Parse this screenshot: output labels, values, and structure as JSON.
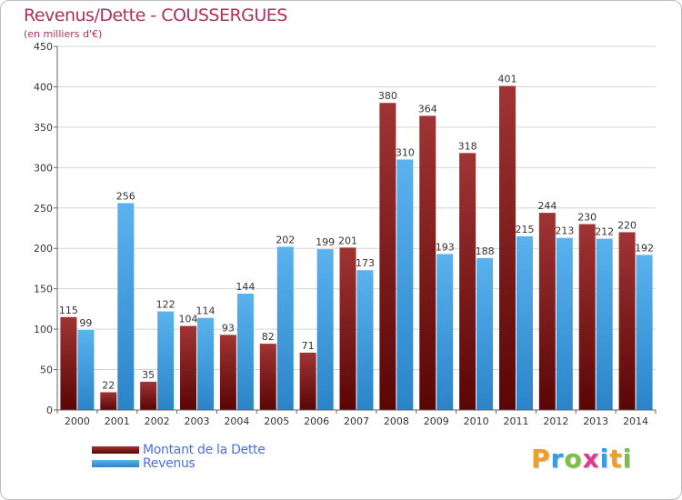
{
  "chart_data": {
    "type": "bar",
    "title": "Revenus/Dette - COUSSERGUES",
    "subtitle": "(en milliers d'€)",
    "categories": [
      "2000",
      "2001",
      "2002",
      "2003",
      "2004",
      "2005",
      "2006",
      "2007",
      "2008",
      "2009",
      "2010",
      "2011",
      "2012",
      "2013",
      "2014"
    ],
    "series": [
      {
        "name": "Montant de la Dette",
        "color": "#7a1818",
        "values": [
          115,
          22,
          35,
          104,
          93,
          82,
          71,
          201,
          380,
          364,
          318,
          401,
          244,
          230,
          220
        ]
      },
      {
        "name": "Revenus",
        "color": "#3a9ce0",
        "values": [
          99,
          256,
          122,
          114,
          144,
          202,
          199,
          173,
          310,
          193,
          188,
          215,
          213,
          212,
          192
        ]
      }
    ],
    "yticks": [
      0,
      50,
      100,
      150,
      200,
      250,
      300,
      350,
      400,
      450
    ],
    "ylim": [
      0,
      450
    ],
    "grid": true,
    "legend_position": "bottom-left"
  },
  "logo": {
    "text": "Proxiti",
    "letter_colors": [
      "#f0a020",
      "#3a9ce0",
      "#7cc242",
      "#e03a8c",
      "#3a9ce0",
      "#f0a020",
      "#7cc242"
    ]
  }
}
